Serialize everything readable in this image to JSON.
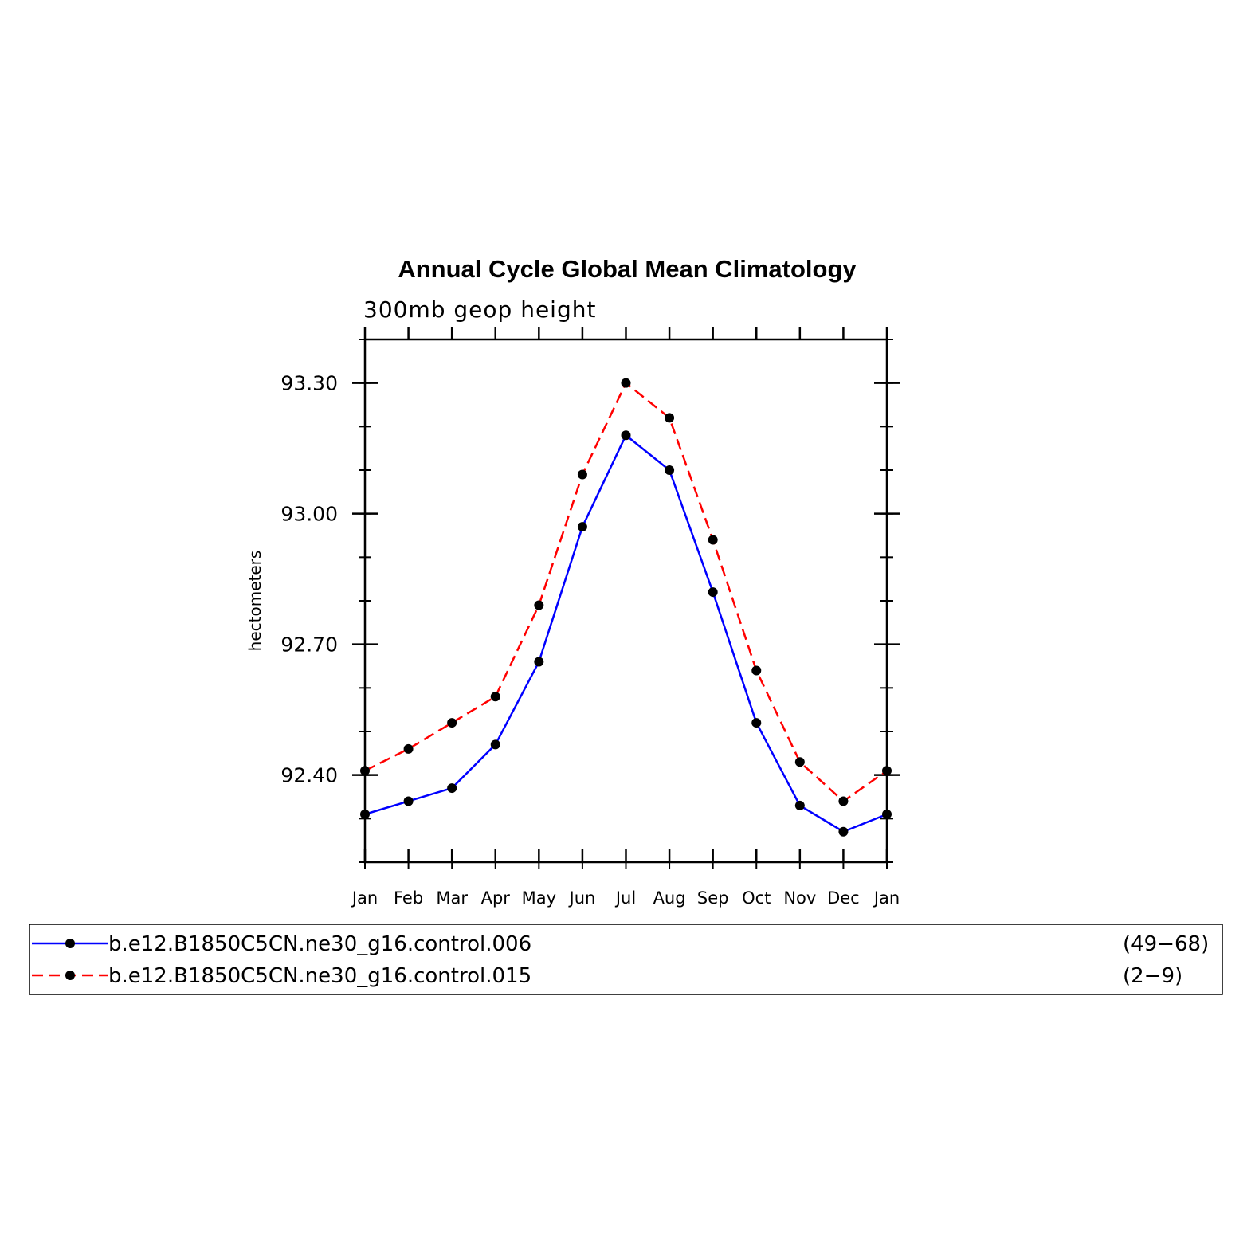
{
  "chart_data": {
    "type": "line",
    "title": "Annual Cycle Global Mean Climatology",
    "subtitle": "300mb geop height",
    "xlabel": "",
    "ylabel": "hectometers",
    "categories": [
      "Jan",
      "Feb",
      "Mar",
      "Apr",
      "May",
      "Jun",
      "Jul",
      "Aug",
      "Sep",
      "Oct",
      "Nov",
      "Dec",
      "Jan"
    ],
    "ylim": [
      92.2,
      93.4
    ],
    "yticks": [
      92.4,
      92.7,
      93.0,
      93.3
    ],
    "ytick_labels": [
      "92.40",
      "92.70",
      "93.00",
      "93.30"
    ],
    "grid": false,
    "legend_position": "bottom",
    "series": [
      {
        "name": "b.e12.B1850C5CN.ne30_g16.control.006",
        "years": "(49−68)",
        "color": "#0000ff",
        "dash": "solid",
        "values": [
          92.31,
          92.34,
          92.37,
          92.47,
          92.66,
          92.97,
          93.18,
          93.1,
          92.82,
          92.52,
          92.33,
          92.27,
          92.31
        ]
      },
      {
        "name": "b.e12.B1850C5CN.ne30_g16.control.015",
        "years": "(2−9)",
        "color": "#ff0000",
        "dash": "dashed",
        "values": [
          92.41,
          92.46,
          92.52,
          92.58,
          92.79,
          93.09,
          93.3,
          93.22,
          92.94,
          92.64,
          92.43,
          92.34,
          92.41
        ]
      }
    ]
  }
}
